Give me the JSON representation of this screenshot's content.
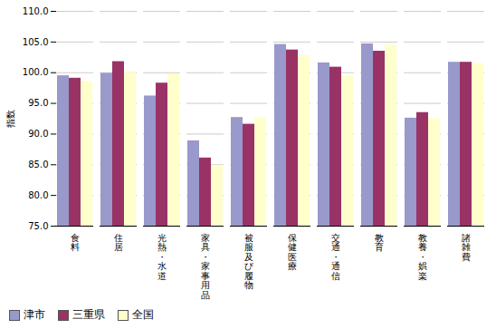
{
  "chart_data": {
    "type": "bar",
    "categories": [
      "食料",
      "住居",
      "光熱・水道",
      "家具・家事用品",
      "被服及び履物",
      "保健医療",
      "交通・通信",
      "教育",
      "教養・娯楽",
      "諸雑費"
    ],
    "series": [
      {
        "name": "津市",
        "color": "#9999cc",
        "values": [
          99.5,
          99.9,
          96.2,
          88.9,
          92.7,
          104.6,
          101.6,
          104.7,
          92.6,
          101.7
        ]
      },
      {
        "name": "三重県",
        "color": "#993366",
        "values": [
          99.1,
          101.8,
          98.3,
          86.1,
          91.6,
          103.7,
          100.9,
          103.5,
          93.5,
          101.7
        ]
      },
      {
        "name": "全国",
        "color": "#ffffcc",
        "values": [
          98.6,
          100.0,
          99.8,
          84.9,
          92.6,
          102.8,
          99.5,
          104.5,
          92.5,
          101.5
        ]
      }
    ],
    "ylabel": "指数",
    "ylim": [
      75.0,
      110.0
    ],
    "yticks": [
      {
        "value": 75,
        "label": "75.0"
      },
      {
        "value": 80,
        "label": "80.0"
      },
      {
        "value": 85,
        "label": "85.0"
      },
      {
        "value": 90,
        "label": "90.0"
      },
      {
        "value": 95,
        "label": "95.0"
      },
      {
        "value": 100,
        "label": "100.0"
      },
      {
        "value": 105,
        "label": "105.0"
      },
      {
        "value": 110,
        "label": "110.0"
      }
    ],
    "grid": true,
    "legend": "lower left"
  }
}
